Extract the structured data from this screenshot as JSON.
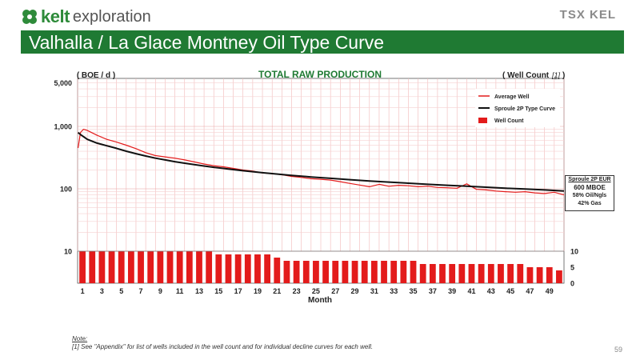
{
  "header": {
    "logo_word": "kelt",
    "logo_sub": "exploration",
    "tsx_logo": "TSX KEL",
    "slide_title": "Valhalla / La Glace Montney Oil Type Curve"
  },
  "chart_data": {
    "type": "line",
    "title": "TOTAL RAW PRODUCTION",
    "ylabel_left": "( BOE / d )",
    "ylabel_right": "( Well Count ",
    "ylabel_right_note": "[1]",
    "ylabel_right_close": ")",
    "xlabel": "Month",
    "yscale": "log",
    "ylim": [
      1,
      5000
    ],
    "left_ticks": [
      "5,000",
      "1,000",
      "100",
      "10"
    ],
    "right_ticks": [
      "10",
      "5",
      "0"
    ],
    "right_axis_range": [
      0,
      10
    ],
    "x_ticks": [
      "1",
      "3",
      "5",
      "7",
      "9",
      "11",
      "13",
      "15",
      "17",
      "19",
      "21",
      "23",
      "25",
      "27",
      "29",
      "31",
      "33",
      "35",
      "37",
      "39",
      "41",
      "43",
      "45",
      "47",
      "49"
    ],
    "legend": {
      "position": "top-right",
      "items": [
        {
          "label": "Average Well",
          "color": "#e31b1b",
          "style": "line"
        },
        {
          "label": "Sproule 2P Type Curve",
          "color": "#111111",
          "style": "line"
        },
        {
          "label": "Well Count",
          "color": "#e31b1b",
          "style": "bar"
        }
      ]
    },
    "series": [
      {
        "name": "Average Well",
        "color": "#e31b1b",
        "x": [
          0.05,
          0.3,
          0.6,
          1,
          2,
          3,
          4,
          5,
          6,
          7,
          8,
          9,
          10,
          11,
          12,
          13,
          14,
          15,
          16,
          17,
          18,
          19,
          20,
          21,
          22,
          23,
          24,
          25,
          26,
          27,
          28,
          29,
          30,
          31,
          32,
          33,
          34,
          35,
          36,
          37,
          38,
          39,
          40,
          41,
          42,
          43,
          44,
          45,
          46,
          47,
          48,
          49,
          50
        ],
        "values": [
          450,
          800,
          900,
          860,
          720,
          620,
          560,
          500,
          440,
          380,
          340,
          325,
          310,
          290,
          270,
          250,
          235,
          225,
          212,
          200,
          192,
          180,
          175,
          168,
          158,
          152,
          145,
          142,
          138,
          130,
          122,
          115,
          108,
          118,
          110,
          114,
          112,
          108,
          110,
          105,
          104,
          102,
          120,
          98,
          96,
          92,
          90,
          88,
          90,
          86,
          84,
          88,
          80
        ]
      },
      {
        "name": "Sproule 2P Type Curve",
        "color": "#111111",
        "x": [
          0.05,
          0.3,
          1,
          2,
          3,
          4,
          5,
          6,
          7,
          8,
          9,
          10,
          11,
          12,
          13,
          14,
          15,
          16,
          17,
          18,
          19,
          20,
          22,
          24,
          26,
          28,
          30,
          32,
          34,
          36,
          38,
          40,
          42,
          44,
          46,
          48,
          50
        ],
        "values": [
          800,
          740,
          620,
          540,
          490,
          445,
          400,
          365,
          335,
          310,
          290,
          272,
          257,
          244,
          232,
          221,
          212,
          203,
          195,
          188,
          181,
          175,
          164,
          155,
          147,
          140,
          133,
          128,
          123,
          118,
          114,
          110,
          106,
          102,
          99,
          96,
          92
        ]
      }
    ],
    "well_count": {
      "name": "Well Count",
      "color": "#e31b1b",
      "months": [
        1,
        2,
        3,
        4,
        5,
        6,
        7,
        8,
        9,
        10,
        11,
        12,
        13,
        14,
        15,
        16,
        17,
        18,
        19,
        20,
        21,
        22,
        23,
        24,
        25,
        26,
        27,
        28,
        29,
        30,
        31,
        32,
        33,
        34,
        35,
        36,
        37,
        38,
        39,
        40,
        41,
        42,
        43,
        44,
        45,
        46,
        47,
        48,
        49,
        50
      ],
      "values": [
        10,
        10,
        10,
        10,
        10,
        10,
        10,
        10,
        10,
        10,
        10,
        10,
        10,
        10,
        9,
        9,
        9,
        9,
        9,
        9,
        8,
        7,
        7,
        7,
        7,
        7,
        7,
        7,
        7,
        7,
        7,
        7,
        7,
        7,
        7,
        6,
        6,
        6,
        6,
        6,
        6,
        6,
        6,
        6,
        6,
        6,
        5,
        5,
        5,
        4
      ]
    },
    "annotation_box": {
      "title": "Sproule 2P EUR",
      "main": "600 MBOE",
      "line1": "58% Oil/Ngls",
      "line2": "42% Gas"
    }
  },
  "footer": {
    "note_label": "Note:",
    "note_text": "[1]  See \"Appendix\" for list of wells included in the well count and for individual decline curves for each well.",
    "page_number": "59"
  }
}
